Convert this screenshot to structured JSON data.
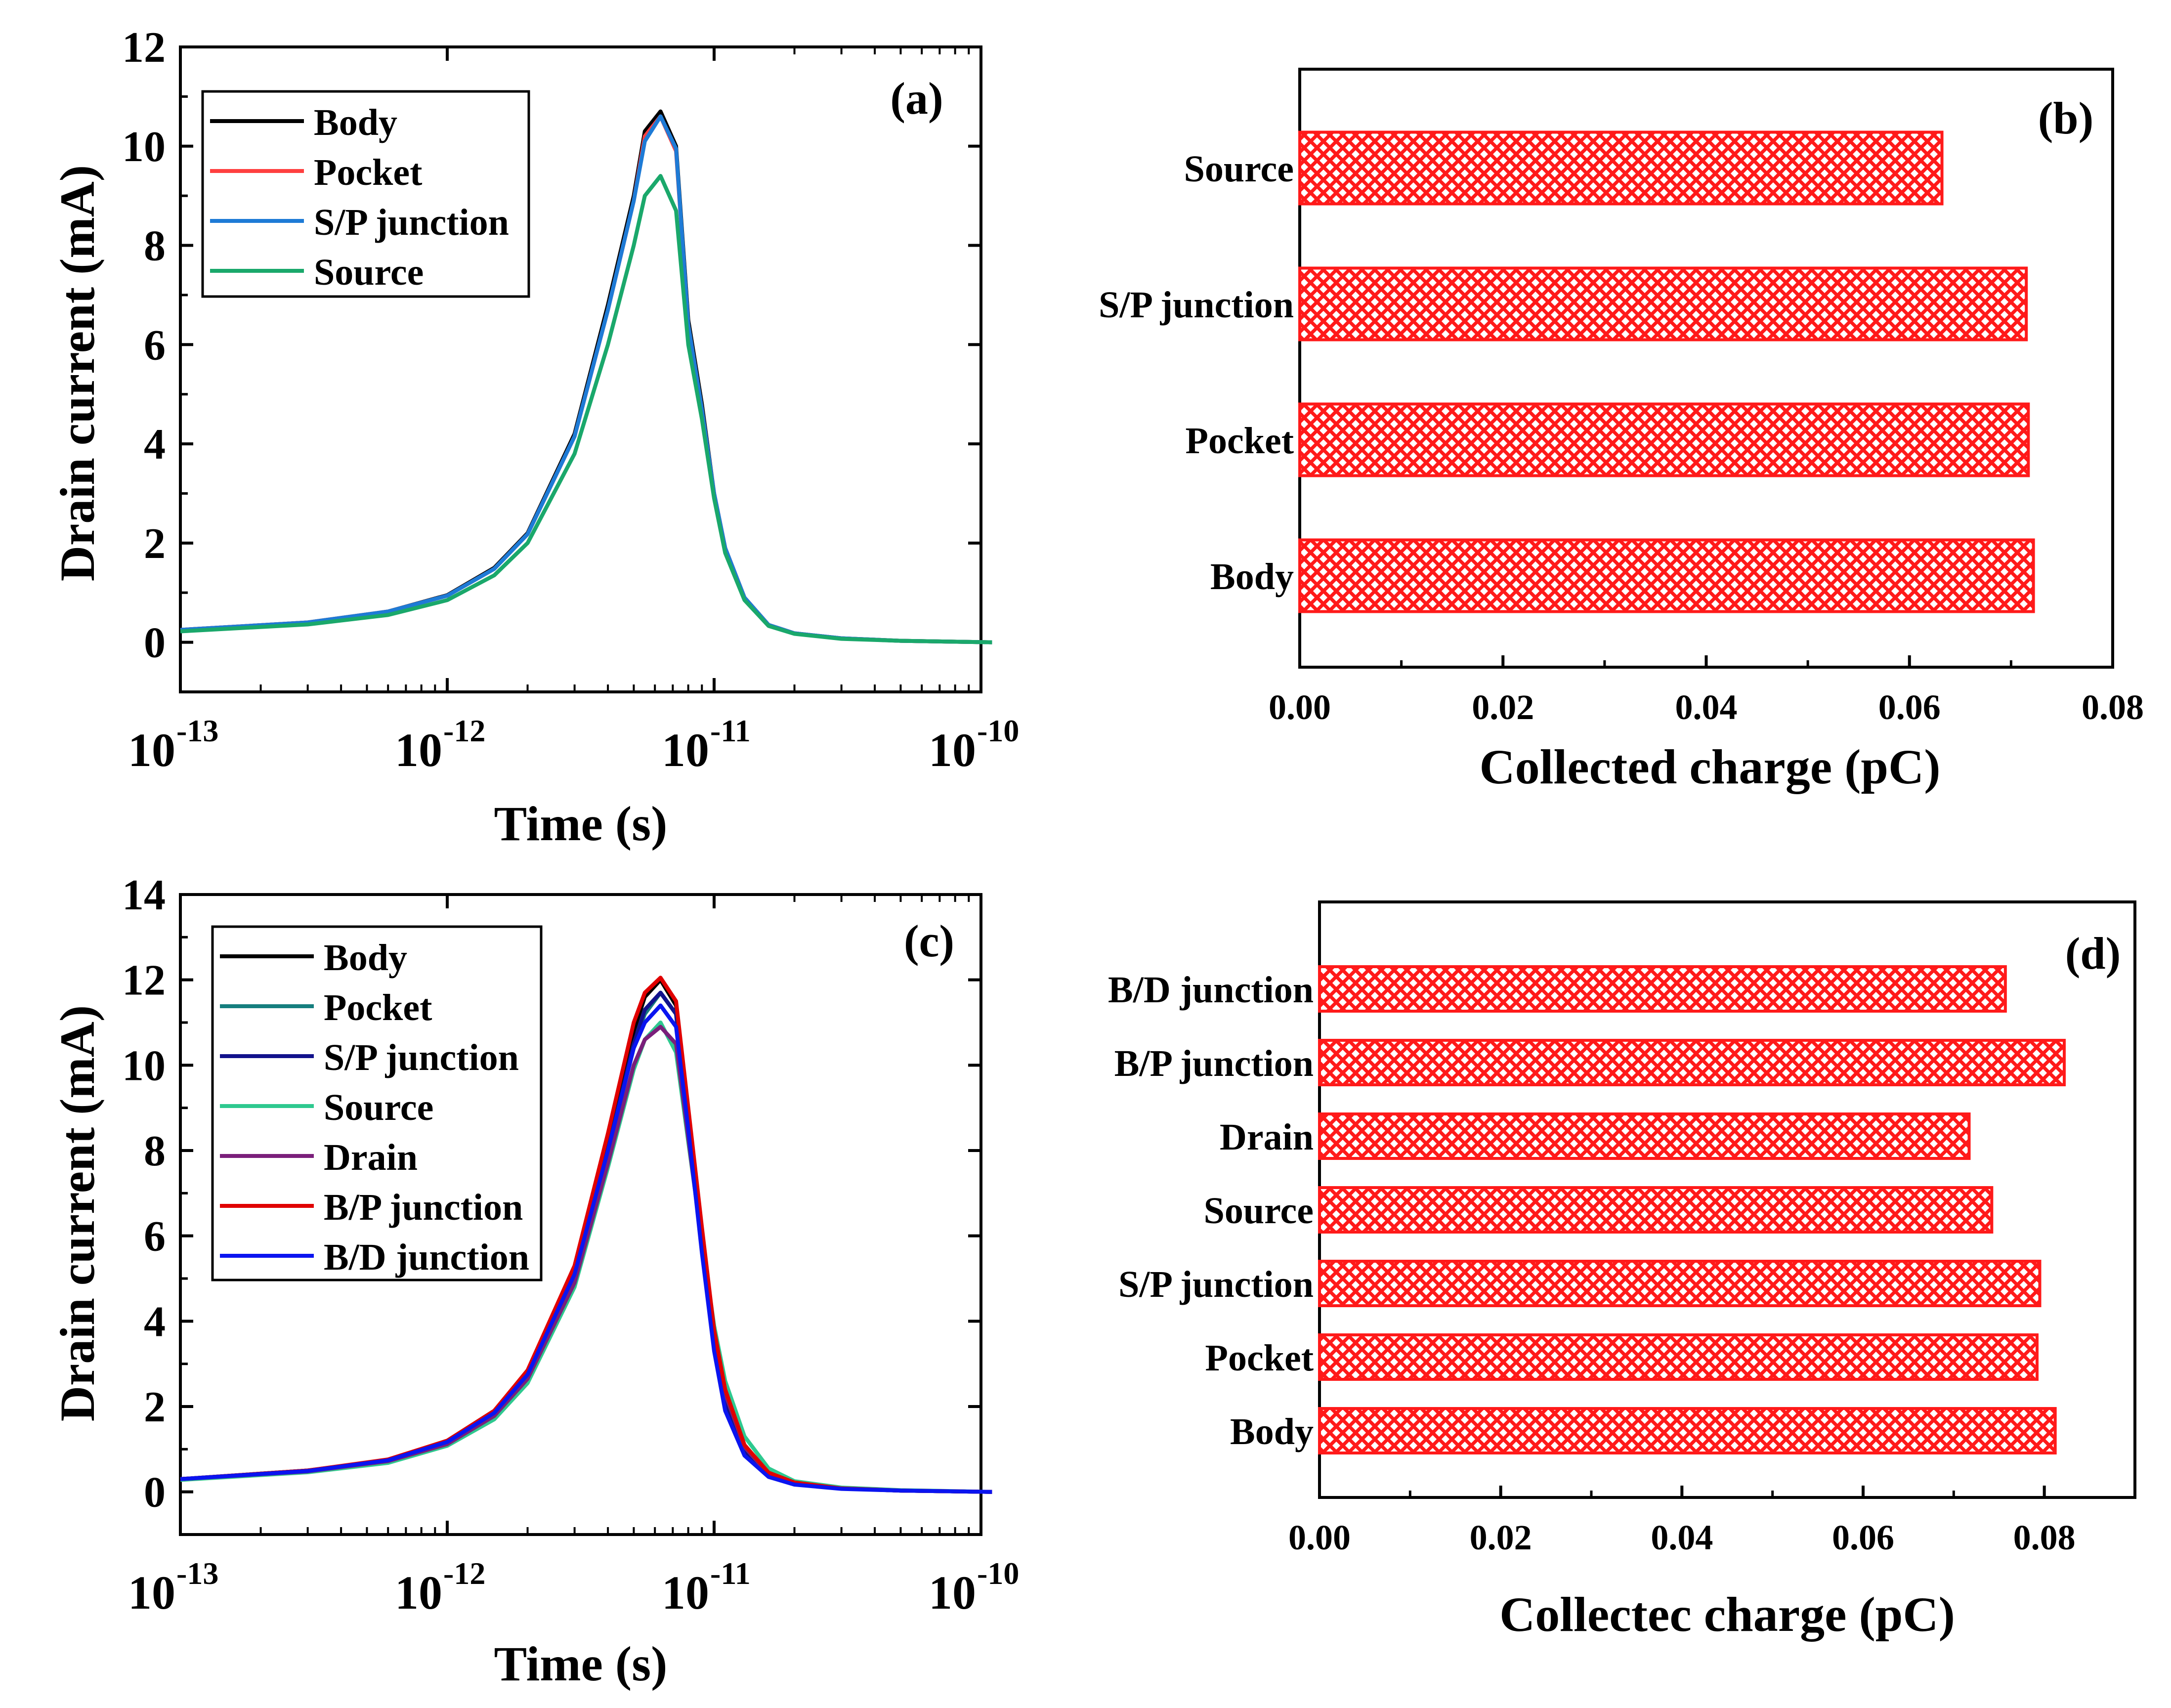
{
  "chart_data": [
    {
      "panel": "(a)",
      "type": "line",
      "xscale": "log",
      "xlim_exp": [
        -13,
        -10
      ],
      "ylim": [
        -1,
        12
      ],
      "yticks": [
        0,
        2,
        4,
        6,
        8,
        10,
        12
      ],
      "xtick_exponents": [
        "-13",
        "-12",
        "-11",
        "-10"
      ],
      "xtick_base": "10",
      "xlabel": "Time (s)",
      "ylabel": "Drain current (mA)",
      "legend_position": "top-left",
      "series": [
        {
          "name": "Body",
          "color": "#000000",
          "x": [
            "1e-13",
            "3e-13",
            "6e-13",
            "1e-12",
            "1.5e-12",
            "2e-12",
            "3e-12",
            "4e-12",
            "5e-12",
            "5.5e-12",
            "6.3e-12",
            "7.2e-12",
            "8e-12",
            "9e-12",
            "1e-11",
            "1.1e-11",
            "1.3e-11",
            "1.6e-11",
            "2e-11",
            "3e-11",
            "5e-11",
            "1.1e-10"
          ],
          "y": [
            0.25,
            0.4,
            0.62,
            0.95,
            1.5,
            2.2,
            4.2,
            6.8,
            9.0,
            10.3,
            10.7,
            10.0,
            6.5,
            4.8,
            3.0,
            1.9,
            0.9,
            0.35,
            0.18,
            0.08,
            0.03,
            0.0
          ]
        },
        {
          "name": "Pocket",
          "color": "#ff4040",
          "x": [
            "1e-13",
            "3e-13",
            "6e-13",
            "1e-12",
            "1.5e-12",
            "2e-12",
            "3e-12",
            "4e-12",
            "5e-12",
            "5.5e-12",
            "6.3e-12",
            "7.2e-12",
            "8e-12",
            "9e-12",
            "1e-11",
            "1.1e-11",
            "1.3e-11",
            "1.6e-11",
            "2e-11",
            "3e-11",
            "5e-11",
            "1.1e-10"
          ],
          "y": [
            0.25,
            0.4,
            0.62,
            0.94,
            1.48,
            2.18,
            4.15,
            6.7,
            8.9,
            10.2,
            10.6,
            9.9,
            6.4,
            4.7,
            3.0,
            1.9,
            0.9,
            0.35,
            0.18,
            0.08,
            0.03,
            0.0
          ]
        },
        {
          "name": "S/P junction",
          "color": "#1e7bd6",
          "x": [
            "1e-13",
            "3e-13",
            "6e-13",
            "1e-12",
            "1.5e-12",
            "2e-12",
            "3e-12",
            "4e-12",
            "5e-12",
            "5.5e-12",
            "6.3e-12",
            "7.2e-12",
            "8e-12",
            "9e-12",
            "1e-11",
            "1.1e-11",
            "1.3e-11",
            "1.6e-11",
            "2e-11",
            "3e-11",
            "5e-11",
            "1.1e-10"
          ],
          "y": [
            0.25,
            0.4,
            0.62,
            0.94,
            1.48,
            2.18,
            4.15,
            6.7,
            8.9,
            10.1,
            10.6,
            9.95,
            6.4,
            4.7,
            3.0,
            1.9,
            0.9,
            0.35,
            0.18,
            0.08,
            0.03,
            0.0
          ]
        },
        {
          "name": "Source",
          "color": "#1aa86b",
          "x": [
            "1e-13",
            "3e-13",
            "6e-13",
            "1e-12",
            "1.5e-12",
            "2e-12",
            "3e-12",
            "4e-12",
            "5e-12",
            "5.5e-12",
            "6.3e-12",
            "7.2e-12",
            "8e-12",
            "9e-12",
            "1e-11",
            "1.1e-11",
            "1.3e-11",
            "1.6e-11",
            "2e-11",
            "3e-11",
            "5e-11",
            "1.1e-10"
          ],
          "y": [
            0.22,
            0.36,
            0.55,
            0.85,
            1.35,
            2.0,
            3.8,
            6.0,
            8.0,
            9.0,
            9.4,
            8.7,
            6.0,
            4.5,
            2.9,
            1.8,
            0.85,
            0.33,
            0.17,
            0.07,
            0.03,
            0.0
          ]
        }
      ]
    },
    {
      "panel": "(b)",
      "type": "bar",
      "orientation": "horizontal",
      "categories": [
        "Body",
        "Pocket",
        "S/P junction",
        "Source"
      ],
      "values": [
        0.0722,
        0.0717,
        0.0715,
        0.0632
      ],
      "xlim": [
        0,
        0.08
      ],
      "xticks": [
        "0.00",
        "0.02",
        "0.04",
        "0.06",
        "0.08"
      ],
      "xlabel": "Collected charge (pC)",
      "bar_color": "#ff1a1a"
    },
    {
      "panel": "(c)",
      "type": "line",
      "xscale": "log",
      "xlim_exp": [
        -13,
        -10
      ],
      "ylim": [
        -1,
        14
      ],
      "yticks": [
        0,
        2,
        4,
        6,
        8,
        10,
        12,
        14
      ],
      "xtick_exponents": [
        "-13",
        "-12",
        "-11",
        "-10"
      ],
      "xtick_base": "10",
      "xlabel": "Time (s)",
      "ylabel": "Drain current (mA)",
      "legend_position": "top-left",
      "series": [
        {
          "name": "Body",
          "color": "#000000",
          "x": [
            "1e-13",
            "3e-13",
            "6e-13",
            "1e-12",
            "1.5e-12",
            "2e-12",
            "3e-12",
            "4e-12",
            "5e-12",
            "5.5e-12",
            "6.3e-12",
            "7.2e-12",
            "8e-12",
            "9e-12",
            "1e-11",
            "1.1e-11",
            "1.3e-11",
            "1.6e-11",
            "2e-11",
            "3e-11",
            "5e-11",
            "1.1e-10"
          ],
          "y": [
            0.3,
            0.5,
            0.75,
            1.2,
            1.9,
            2.8,
            5.2,
            8.2,
            10.8,
            11.6,
            12.0,
            11.4,
            8.8,
            6.0,
            3.6,
            2.2,
            1.0,
            0.4,
            0.2,
            0.08,
            0.03,
            0.0
          ]
        },
        {
          "name": "Pocket",
          "color": "#157e7e",
          "x": [
            "1e-13",
            "3e-13",
            "6e-13",
            "1e-12",
            "1.5e-12",
            "2e-12",
            "3e-12",
            "4e-12",
            "5e-12",
            "5.5e-12",
            "6.3e-12",
            "7.2e-12",
            "8e-12",
            "9e-12",
            "1e-11",
            "1.1e-11",
            "1.3e-11",
            "1.6e-11",
            "2e-11",
            "3e-11",
            "5e-11",
            "1.1e-10"
          ],
          "y": [
            0.3,
            0.5,
            0.74,
            1.18,
            1.85,
            2.75,
            5.1,
            8.0,
            10.5,
            11.2,
            11.7,
            11.2,
            8.6,
            5.9,
            3.5,
            2.2,
            1.0,
            0.4,
            0.2,
            0.08,
            0.03,
            0.0
          ]
        },
        {
          "name": "S/P junction",
          "color": "#12128c",
          "x": [
            "1e-13",
            "3e-13",
            "6e-13",
            "1e-12",
            "1.5e-12",
            "2e-12",
            "3e-12",
            "4e-12",
            "5e-12",
            "5.5e-12",
            "6.3e-12",
            "7.2e-12",
            "8e-12",
            "9e-12",
            "1e-11",
            "1.1e-11",
            "1.3e-11",
            "1.6e-11",
            "2e-11",
            "3e-11",
            "5e-11",
            "1.1e-10"
          ],
          "y": [
            0.3,
            0.5,
            0.74,
            1.18,
            1.85,
            2.75,
            5.1,
            8.0,
            10.5,
            11.3,
            11.7,
            11.2,
            8.6,
            5.9,
            3.5,
            2.1,
            0.95,
            0.4,
            0.2,
            0.08,
            0.03,
            0.0
          ]
        },
        {
          "name": "Source",
          "color": "#2ec98f",
          "x": [
            "1e-13",
            "3e-13",
            "6e-13",
            "1e-12",
            "1.5e-12",
            "2e-12",
            "3e-12",
            "4e-12",
            "5e-12",
            "5.5e-12",
            "6.3e-12",
            "7.2e-12",
            "8e-12",
            "9e-12",
            "1e-11",
            "1.1e-11",
            "1.3e-11",
            "1.6e-11",
            "2e-11",
            "3e-11",
            "5e-11",
            "1.1e-10"
          ],
          "y": [
            0.28,
            0.46,
            0.68,
            1.08,
            1.7,
            2.55,
            4.8,
            7.6,
            9.9,
            10.6,
            11.0,
            10.3,
            8.2,
            5.9,
            3.9,
            2.6,
            1.3,
            0.55,
            0.25,
            0.1,
            0.04,
            0.0
          ]
        },
        {
          "name": "Drain",
          "color": "#7a1f7a",
          "x": [
            "1e-13",
            "3e-13",
            "6e-13",
            "1e-12",
            "1.5e-12",
            "2e-12",
            "3e-12",
            "4e-12",
            "5e-12",
            "5.5e-12",
            "6.3e-12",
            "7.2e-12",
            "8e-12",
            "9e-12",
            "1e-11",
            "1.1e-11",
            "1.3e-11",
            "1.6e-11",
            "2e-11",
            "3e-11",
            "5e-11",
            "1.1e-10"
          ],
          "y": [
            0.3,
            0.48,
            0.72,
            1.12,
            1.78,
            2.65,
            4.9,
            7.7,
            10.0,
            10.6,
            10.9,
            10.5,
            8.3,
            5.8,
            3.6,
            2.3,
            1.05,
            0.42,
            0.2,
            0.08,
            0.03,
            0.0
          ]
        },
        {
          "name": "B/P junction",
          "color": "#e00000",
          "x": [
            "1e-13",
            "3e-13",
            "6e-13",
            "1e-12",
            "1.5e-12",
            "2e-12",
            "3e-12",
            "4e-12",
            "5e-12",
            "5.5e-12",
            "6.3e-12",
            "7.2e-12",
            "8e-12",
            "9e-12",
            "1e-11",
            "1.1e-11",
            "1.3e-11",
            "1.6e-11",
            "2e-11",
            "3e-11",
            "5e-11",
            "1.1e-10"
          ],
          "y": [
            0.3,
            0.5,
            0.76,
            1.2,
            1.9,
            2.85,
            5.3,
            8.4,
            11.0,
            11.7,
            12.05,
            11.5,
            9.0,
            6.2,
            3.8,
            2.4,
            1.1,
            0.45,
            0.22,
            0.08,
            0.03,
            0.0
          ]
        },
        {
          "name": "B/D junction",
          "color": "#0a14f0",
          "x": [
            "1e-13",
            "3e-13",
            "6e-13",
            "1e-12",
            "1.5e-12",
            "2e-12",
            "3e-12",
            "4e-12",
            "5e-12",
            "5.5e-12",
            "6.3e-12",
            "7.2e-12",
            "8e-12",
            "9e-12",
            "1e-11",
            "1.1e-11",
            "1.3e-11",
            "1.6e-11",
            "2e-11",
            "3e-11",
            "5e-11",
            "1.1e-10"
          ],
          "y": [
            0.3,
            0.49,
            0.74,
            1.17,
            1.85,
            2.75,
            5.1,
            8.0,
            10.4,
            11.0,
            11.4,
            10.9,
            8.5,
            5.6,
            3.3,
            1.9,
            0.85,
            0.35,
            0.17,
            0.07,
            0.03,
            0.0
          ]
        }
      ]
    },
    {
      "panel": "(d)",
      "type": "bar",
      "orientation": "horizontal",
      "categories": [
        "Body",
        "Pocket",
        "S/P junction",
        "Source",
        "Drain",
        "B/P junction",
        "B/D junction"
      ],
      "values": [
        0.0812,
        0.0792,
        0.0795,
        0.0742,
        0.0717,
        0.0822,
        0.0757
      ],
      "xlim": [
        0,
        0.09
      ],
      "xticks": [
        "0.00",
        "0.02",
        "0.04",
        "0.06",
        "0.08"
      ],
      "xlabel": "Collectec charge (pC)",
      "bar_color": "#ff1a1a"
    }
  ]
}
